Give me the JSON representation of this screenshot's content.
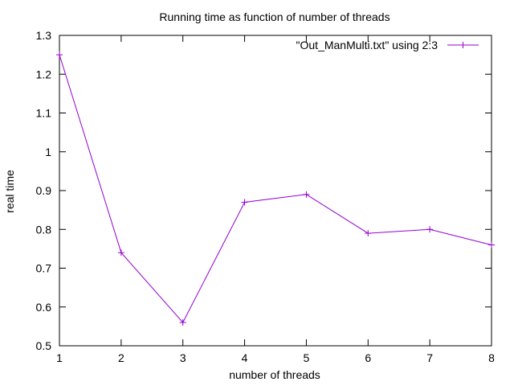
{
  "chart_data": {
    "type": "line",
    "title": "Running time as function of number of threads",
    "xlabel": "number of threads",
    "ylabel": "real time",
    "xlim": [
      1,
      8
    ],
    "ylim": [
      0.5,
      1.3
    ],
    "xticks": [
      1,
      2,
      3,
      4,
      5,
      6,
      7,
      8
    ],
    "yticks": [
      0.5,
      0.6,
      0.7,
      0.8,
      0.9,
      1.0,
      1.1,
      1.2,
      1.3
    ],
    "ytick_labels": [
      "0.5",
      "0.6",
      "0.7",
      "0.8",
      "0.9",
      "1",
      "1.1",
      "1.2",
      "1.3"
    ],
    "grid": false,
    "legend_position": "top-right",
    "series": [
      {
        "name": "\"Out_ManMulti.txt\" using 2:3",
        "color": "#9400d3",
        "marker": "plus",
        "x": [
          1,
          2,
          3,
          4,
          5,
          6,
          7,
          8
        ],
        "y": [
          1.25,
          0.74,
          0.56,
          0.87,
          0.89,
          0.79,
          0.8,
          0.76
        ]
      }
    ]
  }
}
